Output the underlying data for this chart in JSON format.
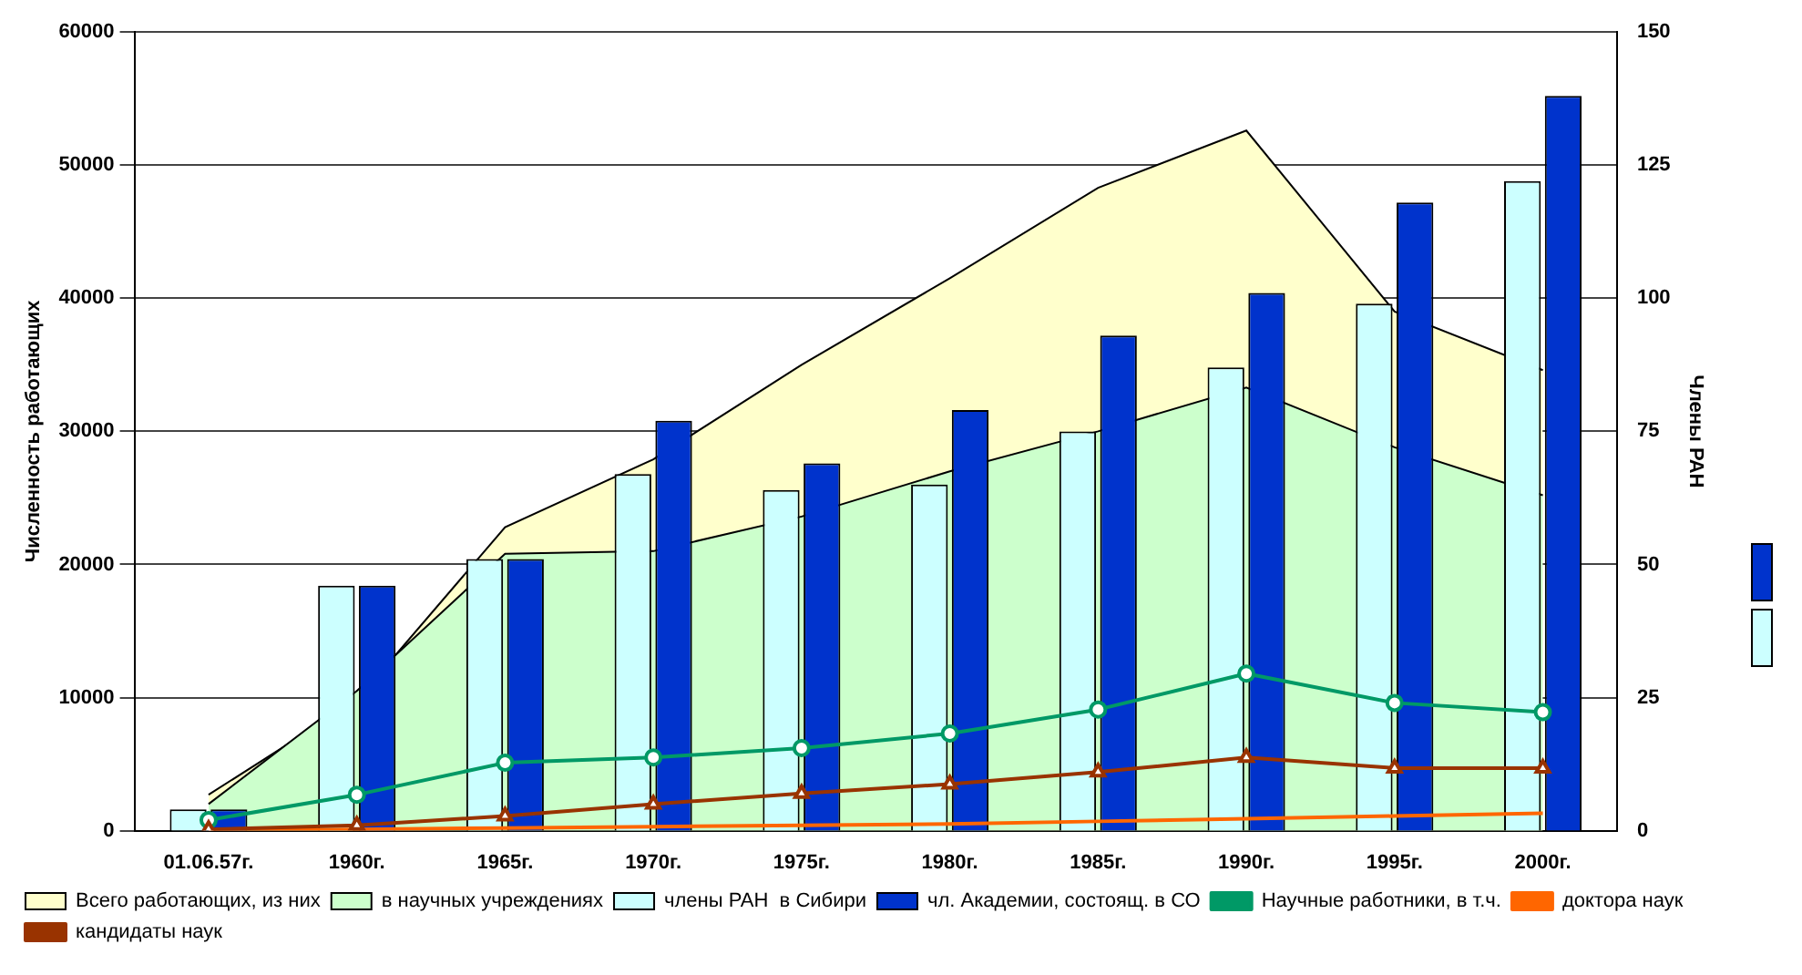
{
  "chart_data": {
    "type": "bar",
    "categories": [
      "01.06.57г.",
      "1960г.",
      "1965г.",
      "1970г.",
      "1975г.",
      "1980г.",
      "1985г.",
      "1990г.",
      "1995г.",
      "2000г."
    ],
    "ylabel": "Численность работающих",
    "y2label": "Члены РАН",
    "ylim": [
      0,
      60000
    ],
    "yticks": [
      0,
      10000,
      20000,
      30000,
      40000,
      50000,
      60000
    ],
    "y2lim": [
      0,
      150
    ],
    "y2ticks": [
      0,
      25,
      50,
      75,
      100,
      125,
      150
    ],
    "grid": "y",
    "legend": "bottom",
    "series": [
      {
        "name": "Всего работающих, из них",
        "type": "area",
        "color": "#ffffcc",
        "values": [
          2700,
          9800,
          22800,
          27900,
          35000,
          41500,
          48300,
          52600,
          39000,
          34600
        ]
      },
      {
        "name": "в научных учреждениях",
        "type": "area",
        "color": "#ccffcc",
        "values": [
          2000,
          10500,
          20800,
          21000,
          23600,
          27000,
          30000,
          33300,
          28800,
          25200
        ]
      },
      {
        "name": "члены РАН  в Сибири",
        "axis": "y2",
        "color": "#ccffff",
        "values": [
          4,
          46,
          51,
          67,
          64,
          65,
          75,
          87,
          99,
          122
        ]
      },
      {
        "name": "чл. Академии, состоящ. в СО",
        "axis": "y2",
        "color": "#0033cc",
        "values": [
          4,
          46,
          51,
          77,
          69,
          79,
          93,
          101,
          118,
          138
        ]
      },
      {
        "name": "Научные работники, в т.ч.",
        "type": "line",
        "marker": "circle",
        "color": "#009966",
        "values": [
          800,
          2700,
          5100,
          5500,
          6200,
          7300,
          9100,
          11800,
          9600,
          8900
        ]
      },
      {
        "name": "доктора наук",
        "type": "line",
        "marker": "none",
        "color": "#ff6600",
        "values": [
          0,
          100,
          200,
          300,
          400,
          500,
          700,
          900,
          1100,
          1300
        ]
      },
      {
        "name": "кандидаты наук",
        "type": "line",
        "marker": "triangle",
        "color": "#993300",
        "values": [
          100,
          400,
          1100,
          2000,
          2800,
          3500,
          4400,
          5500,
          4700,
          4700
        ]
      }
    ]
  }
}
